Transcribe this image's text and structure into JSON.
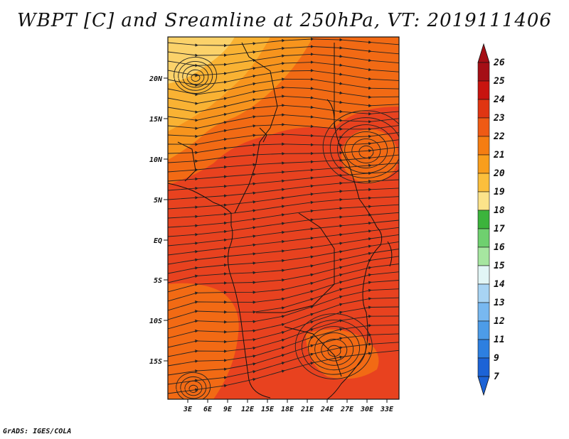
{
  "title": "WBPT [C] and Sreamline at 250hPa, VT: 2019111406",
  "footer": "GrADS: IGES/COLA",
  "map": {
    "lat_ticks": [
      "20N",
      "15N",
      "10N",
      "5N",
      "EQ",
      "5S",
      "10S",
      "15S"
    ],
    "lon_ticks": [
      "3E",
      "6E",
      "9E",
      "12E",
      "15E",
      "18E",
      "21E",
      "24E",
      "27E",
      "30E",
      "33E"
    ],
    "lat_range": [
      -20,
      24
    ],
    "lon_range": [
      0,
      35
    ],
    "field_colors": {
      "warm": "#e8421f",
      "mid": "#f26a14",
      "orange": "#f7941d",
      "light": "#f9b233",
      "pale": "#fbd26a"
    }
  },
  "colorbar": {
    "levels": [
      "26",
      "25",
      "24",
      "23",
      "22",
      "21",
      "20",
      "19",
      "18",
      "17",
      "16",
      "15",
      "14",
      "13",
      "12",
      "11",
      "9",
      "7"
    ],
    "colors": [
      "#a50f15",
      "#c8140f",
      "#e03512",
      "#ef5a14",
      "#f57d12",
      "#f99e1c",
      "#fbbf3c",
      "#fce38a",
      "#3cb43c",
      "#6fd06f",
      "#a6e6a0",
      "#e2f6f6",
      "#a8d4f4",
      "#78b8f0",
      "#4d9ce8",
      "#2d7fe0",
      "#1c63d6"
    ]
  }
}
